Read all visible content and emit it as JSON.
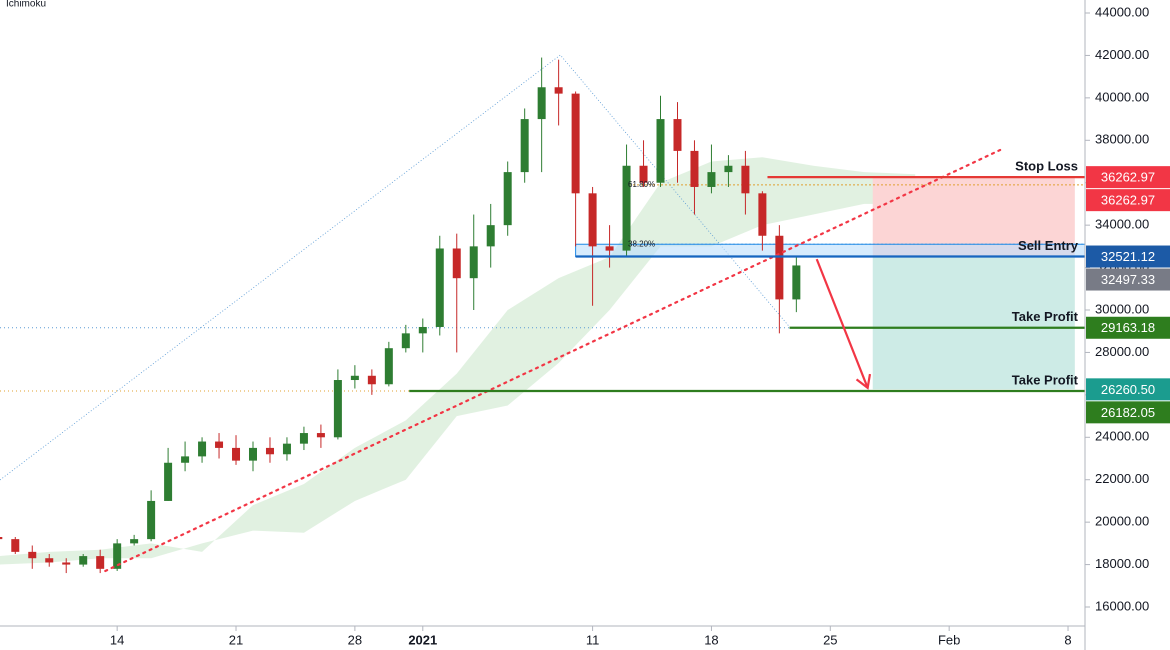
{
  "chart_data": {
    "type": "candlestick",
    "indicator": "Ichimoku",
    "xlim": [
      7.1,
      71
    ],
    "ylim": [
      15105,
      44613
    ],
    "xticks": [
      14,
      21,
      28,
      {
        "value": 32,
        "label": "2021"
      },
      {
        "value": 42,
        "label": "11"
      },
      {
        "value": 49,
        "label": "18"
      },
      {
        "value": 56,
        "label": "25"
      },
      {
        "value": 63,
        "label": "Feb"
      },
      {
        "value": 70,
        "label": "8"
      }
    ],
    "yticks": [
      {
        "value": 16000,
        "label": "16000.00"
      },
      {
        "value": 18000,
        "label": "18000.00"
      },
      {
        "value": 20000,
        "label": "20000.00"
      },
      {
        "value": 22000,
        "label": "22000.00"
      },
      {
        "value": 24000,
        "label": "24000.00"
      },
      {
        "value": 26000,
        "label": "26000.00"
      },
      {
        "value": 28000,
        "label": "28000.00"
      },
      {
        "value": 30000,
        "label": "30000.00"
      },
      {
        "value": 32000,
        "label": "32000.00"
      },
      {
        "value": 34000,
        "label": "34000.00"
      },
      {
        "value": 36000,
        "label": "36000.00"
      },
      {
        "value": 38000,
        "label": "38000.00"
      },
      {
        "value": 40000,
        "label": "40000.00"
      },
      {
        "value": 42000,
        "label": "42000.00"
      },
      {
        "value": 44000,
        "label": "44000.00"
      }
    ],
    "up_color": "#2e7d32",
    "down_color": "#c62828",
    "candles": {
      "x": [
        7,
        8,
        9,
        10,
        11,
        12,
        13,
        14,
        15,
        16,
        17,
        18,
        19,
        20,
        21,
        22,
        23,
        24,
        25,
        26,
        27,
        28,
        29,
        30,
        31,
        32,
        33,
        34,
        35,
        36,
        37,
        38,
        39,
        40,
        41,
        42,
        43,
        44,
        45,
        46,
        47,
        48,
        49,
        50,
        51,
        52,
        53,
        54
      ],
      "open": [
        19300,
        19200,
        18600,
        18300,
        18100,
        18000,
        18400,
        17800,
        19000,
        19200,
        21000,
        22800,
        23100,
        23800,
        23500,
        22900,
        23500,
        23200,
        23700,
        24200,
        24000,
        26700,
        26900,
        26500,
        28200,
        28900,
        29200,
        32900,
        31500,
        33000,
        34000,
        36500,
        39000,
        40500,
        40200,
        35500,
        33000,
        32800,
        36800,
        36000,
        39000,
        37500,
        35800,
        36500,
        36800,
        35500,
        33500,
        30500
      ],
      "high": [
        19400,
        19300,
        18900,
        18500,
        18300,
        18500,
        18700,
        19200,
        19400,
        21500,
        23500,
        23800,
        24000,
        24200,
        24100,
        23800,
        24000,
        24000,
        24500,
        24600,
        27200,
        27400,
        27200,
        28500,
        29300,
        29600,
        33500,
        33600,
        34500,
        35000,
        37000,
        39500,
        41900,
        41800,
        40300,
        35800,
        34000,
        37800,
        38000,
        40100,
        39800,
        38000,
        37800,
        37300,
        37500,
        35600,
        34000,
        32500
      ],
      "low": [
        19000,
        18500,
        17800,
        17900,
        17600,
        17900,
        17600,
        17700,
        18900,
        19100,
        21000,
        22400,
        22800,
        23000,
        22700,
        22400,
        22800,
        22900,
        23400,
        23500,
        23900,
        26300,
        26000,
        26400,
        28000,
        28000,
        28800,
        28000,
        30000,
        32000,
        33500,
        36000,
        36500,
        38700,
        33000,
        30200,
        32000,
        32500,
        35800,
        35800,
        36000,
        34500,
        35500,
        35800,
        34500,
        32800,
        28900,
        29900
      ],
      "close": [
        19200,
        18600,
        18300,
        18100,
        18000,
        18400,
        17800,
        19000,
        19200,
        21000,
        22800,
        23100,
        23800,
        23500,
        22900,
        23500,
        23200,
        23700,
        24200,
        24000,
        26700,
        26900,
        26500,
        28200,
        28900,
        29200,
        32900,
        31500,
        33000,
        34000,
        36500,
        39000,
        40500,
        40200,
        35500,
        33000,
        32800,
        36800,
        36000,
        39000,
        37500,
        35800,
        36500,
        36800,
        35500,
        33500,
        30500,
        32100
      ]
    },
    "cloud": {
      "color": "#c8e6c9",
      "x": [
        7,
        10,
        13,
        16,
        19,
        22,
        25,
        28,
        31,
        34,
        37,
        40,
        43,
        46,
        49,
        52,
        55,
        58,
        61
      ],
      "span_a": [
        18400,
        18600,
        18700,
        19000,
        18600,
        20800,
        21800,
        23500,
        24800,
        27000,
        30000,
        31500,
        32500,
        36000,
        37000,
        37200,
        36800,
        36500,
        36400
      ],
      "span_b": [
        18000,
        18100,
        18300,
        18300,
        19000,
        19600,
        19500,
        21000,
        22000,
        25000,
        25500,
        27500,
        30000,
        33000,
        33000,
        34000,
        34500,
        35000,
        35000
      ]
    },
    "fib_path": {
      "color": "#5b9bd5",
      "x": [
        7.1,
        40.1,
        53.6
      ],
      "y": [
        21990,
        42020,
        29200
      ]
    },
    "fib_levels": [
      {
        "label": "61.80%",
        "value": 35900,
        "color": "#e0a030"
      },
      {
        "label": "38.20%",
        "value": 33100,
        "color": "#5b9bd5"
      }
    ],
    "trendline": {
      "color": "#f23645",
      "x": [
        13.3,
        66.0
      ],
      "y": [
        17700,
        37542
      ]
    },
    "levels": [
      {
        "label": "Stop Loss",
        "value": 36262.97,
        "color": "#e53935",
        "x0": 52.3
      },
      {
        "label": "Sell Entry",
        "value": 32521.12,
        "color": "#1565c0",
        "x0": 41.0,
        "zone_to": 33100
      },
      {
        "label": "Take Profit",
        "value": 29163.18,
        "color": "#2e7d1e",
        "x0": 53.6,
        "guide_color": "#5b9bd5"
      },
      {
        "label": "Take Profit",
        "value": 26182.05,
        "color": "#2e7d1e",
        "x0": 31.2,
        "guide_color": "#e0a030"
      }
    ],
    "position": {
      "x": [
        58.5,
        70.4
      ],
      "stop": 36262.97,
      "entry": 32521.12,
      "target": 26260.5,
      "risk_color": "#fcd5d5",
      "reward_color": "#cdebe6"
    },
    "arrow": {
      "color": "#f23645",
      "x": [
        55.2,
        58.2
      ],
      "y": [
        32400,
        26330
      ]
    },
    "price_labels": [
      {
        "value": 36262.97,
        "color": "#f23645"
      },
      {
        "value": 36262.97,
        "color": "#f23645"
      },
      {
        "value": 32521.12,
        "color": "#1c5aa6"
      },
      {
        "value": 32497.33,
        "color": "#787b86"
      },
      {
        "value": 29163.18,
        "color": "#2e7d1e"
      },
      {
        "value": 26260.5,
        "label": "26260.50",
        "color": "#1b9c8f"
      },
      {
        "value": 26182.05,
        "color": "#2e7d1e"
      }
    ]
  }
}
